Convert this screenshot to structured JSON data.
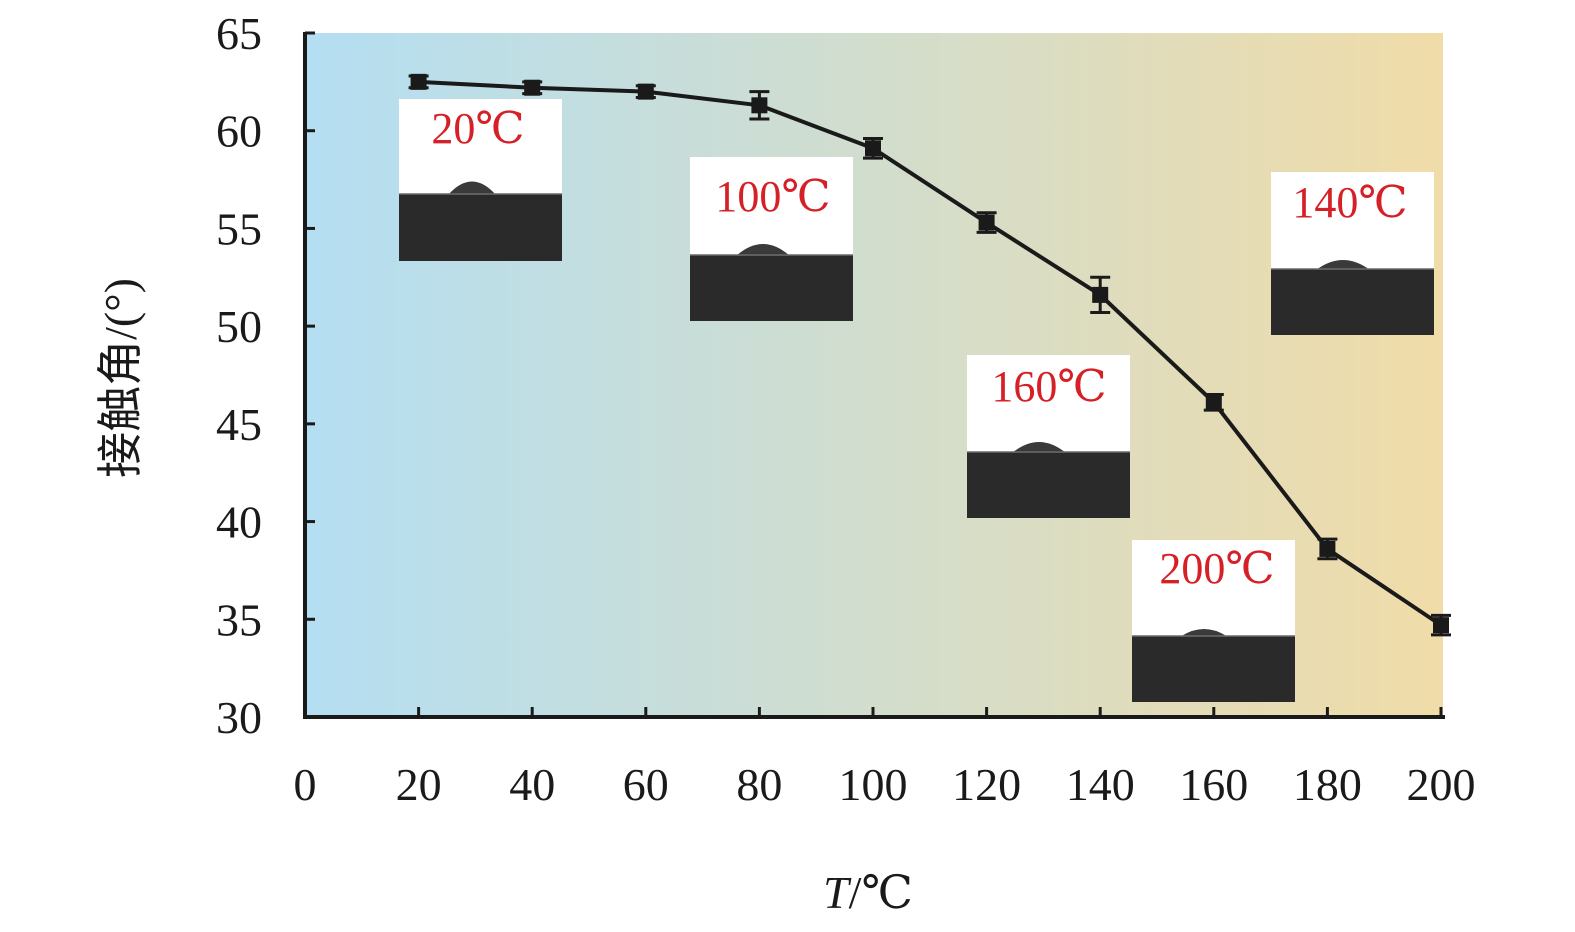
{
  "chart_data": {
    "type": "line",
    "title": "",
    "xlabel_italic": "T",
    "xlabel_rest": "/℃",
    "ylabel": "接触角/(°)",
    "xlim": [
      0,
      200
    ],
    "ylim": [
      30,
      65
    ],
    "xticks": [
      "0",
      "20",
      "40",
      "60",
      "80",
      "100",
      "120",
      "140",
      "160",
      "180",
      "200"
    ],
    "xtick_values": [
      0,
      20,
      40,
      60,
      80,
      100,
      120,
      140,
      160,
      180,
      200
    ],
    "yticks": [
      "30",
      "35",
      "40",
      "45",
      "50",
      "55",
      "60",
      "65"
    ],
    "ytick_values": [
      30,
      35,
      40,
      45,
      50,
      55,
      60,
      65
    ],
    "grid": false,
    "background_gradient": [
      "#b4def2",
      "#f0dca8"
    ],
    "series": [
      {
        "color": "#1a1a1a",
        "marker": "square",
        "x": [
          20,
          40,
          60,
          80,
          100,
          120,
          140,
          160,
          180,
          200
        ],
        "y": [
          62.5,
          62.2,
          62.0,
          61.3,
          59.1,
          55.3,
          51.6,
          46.1,
          38.6,
          34.7
        ],
        "error": [
          0.3,
          0.3,
          0.3,
          0.7,
          0.5,
          0.5,
          0.9,
          0.4,
          0.5,
          0.5
        ]
      }
    ],
    "insets": [
      {
        "label": "20℃",
        "label_color": "#d62027",
        "near_x": 20
      },
      {
        "label": "100℃",
        "label_color": "#d62027",
        "near_x": 100
      },
      {
        "label": "140℃",
        "label_color": "#d62027",
        "near_x": 140
      },
      {
        "label": "160℃",
        "label_color": "#d62027",
        "near_x": 160
      },
      {
        "label": "200℃",
        "label_color": "#d62027",
        "near_x": 200
      }
    ]
  }
}
